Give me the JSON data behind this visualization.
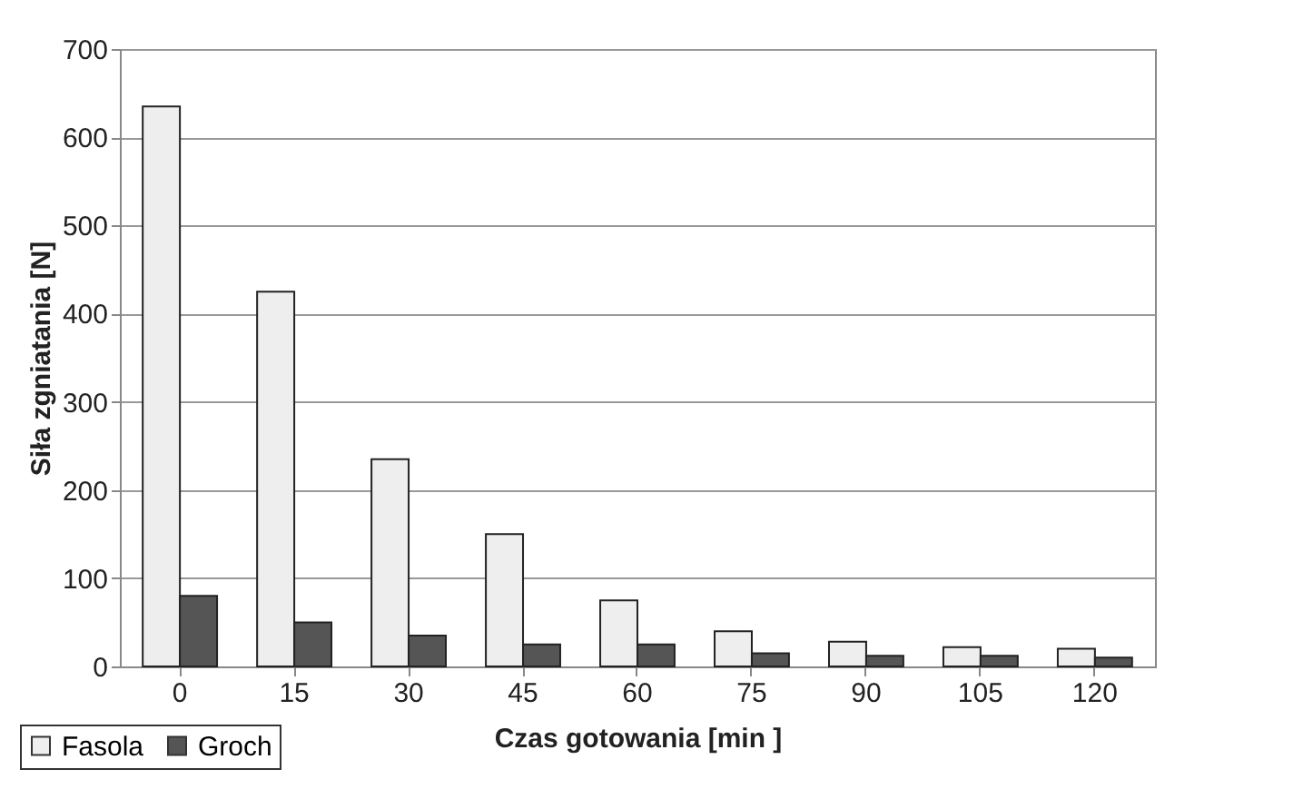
{
  "chart_data": {
    "type": "bar",
    "xlabel": "Czas gotowania [min ]",
    "ylabel": "Siła zgniatania [N]",
    "categories": [
      "0",
      "15",
      "30",
      "45",
      "60",
      "75",
      "90",
      "105",
      "120"
    ],
    "series": [
      {
        "name": "Fasola",
        "color": "#eeeeee",
        "values": [
          635,
          425,
          235,
          150,
          75,
          40,
          28,
          22,
          20
        ]
      },
      {
        "name": "Groch",
        "color": "#555555",
        "values": [
          80,
          50,
          35,
          25,
          25,
          15,
          12,
          12,
          10
        ]
      }
    ],
    "ylim": [
      0,
      700
    ],
    "yticks": [
      0,
      100,
      200,
      300,
      400,
      500,
      600,
      700
    ],
    "grid": "y",
    "legend": "bottom left"
  }
}
